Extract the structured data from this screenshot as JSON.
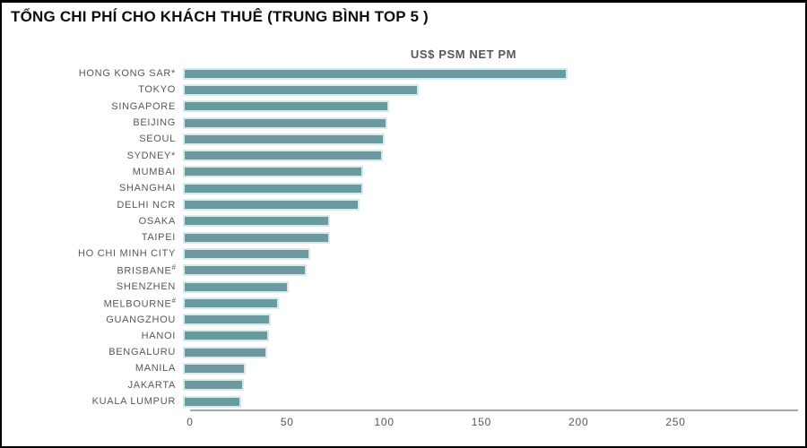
{
  "page": {
    "heading": "TỔNG CHI PHÍ CHO KHÁCH THUÊ (TRUNG BÌNH TOP 5 )"
  },
  "chart_data": {
    "type": "bar",
    "orientation": "horizontal",
    "title": "TỔNG CHI PHÍ CHO KHÁCH THUÊ (TRUNG BÌNH TOP 5 )",
    "subtitle": "US$ PSM NET PM",
    "categories": [
      "HONG KONG SAR*",
      "TOKYO",
      "SINGAPORE",
      "BEIJING",
      "SEOUL",
      "SYDNEY*",
      "MUMBAI",
      "SHANGHAI",
      "DELHI NCR",
      "OSAKA",
      "TAIPEI",
      "HO CHI MINH CITY",
      "BRISBANE#",
      "SHENZHEN",
      "MELBOURNE#",
      "GUANGZHOU",
      "HANOI",
      "BENGALURU",
      "MANILA",
      "JAKARTA",
      "KUALA LUMPUR"
    ],
    "values": [
      194,
      118,
      103,
      102,
      101,
      100,
      90,
      90,
      88,
      73,
      73,
      63,
      61,
      52,
      47,
      43,
      42,
      41,
      30,
      29,
      28
    ],
    "footnote_marker_cities": [
      "BRISBANE#",
      "MELBOURNE#"
    ],
    "xlabel": "US$ PSM NET PM",
    "ylabel": "",
    "xlim": [
      0,
      313
    ],
    "xticks": [
      0,
      50,
      100,
      150,
      200,
      250
    ],
    "grid": false,
    "legend": false,
    "bar_color": "#6B99A0",
    "bar_border_color": "#D9E8EA",
    "label_color": "#55585C",
    "axis_color": "#A6A6A6"
  }
}
